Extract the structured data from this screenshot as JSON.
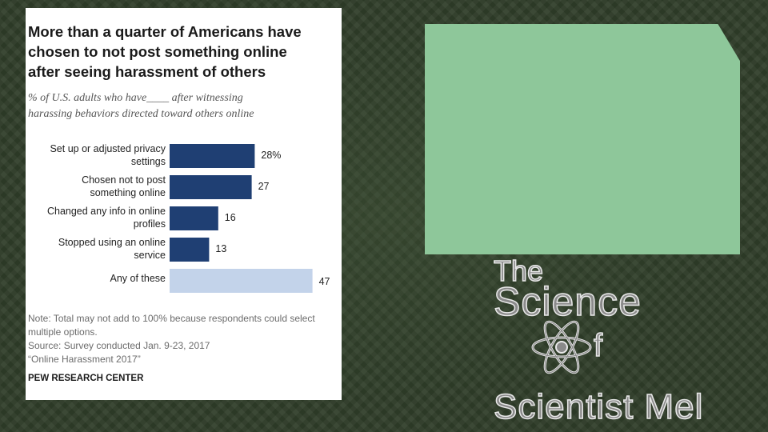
{
  "chart_data": {
    "type": "bar",
    "orientation": "horizontal",
    "title_lines": [
      "More than a quarter of Americans have",
      "chosen to not post something online",
      "after seeing harassment of others"
    ],
    "subtitle_lines": [
      "% of U.S. adults who have____ after witnessing",
      "harassing behaviors directed toward others online"
    ],
    "categories": [
      [
        "Set up or adjusted privacy",
        "settings"
      ],
      [
        "Chosen not to post",
        "something online"
      ],
      [
        "Changed any info in online",
        "profiles"
      ],
      [
        "Stopped using an online",
        "service"
      ],
      [
        "Any of these"
      ]
    ],
    "values": [
      28,
      27,
      16,
      13,
      47
    ],
    "value_labels": [
      "28%",
      "27",
      "16",
      "13",
      "47"
    ],
    "bar_colors": [
      "#1f3f73",
      "#1f3f73",
      "#1f3f73",
      "#1f3f73",
      "#c3d3ea"
    ],
    "notes": [
      "Note: Total may not add to 100% because respondents could select",
      "multiple options.",
      "Source: Survey conducted Jan. 9-23, 2017",
      "“Online Harassment 2017”"
    ],
    "source_org": "PEW RESEARCH CENTER",
    "grid": false,
    "legend": "none"
  },
  "logo": {
    "the": "The",
    "science": "Science",
    "of": "f",
    "name": "Scientist Mel",
    "icon": "atom-icon"
  },
  "colors": {
    "background": "#2f3d29",
    "placeholder_box": "#8ec79a"
  }
}
